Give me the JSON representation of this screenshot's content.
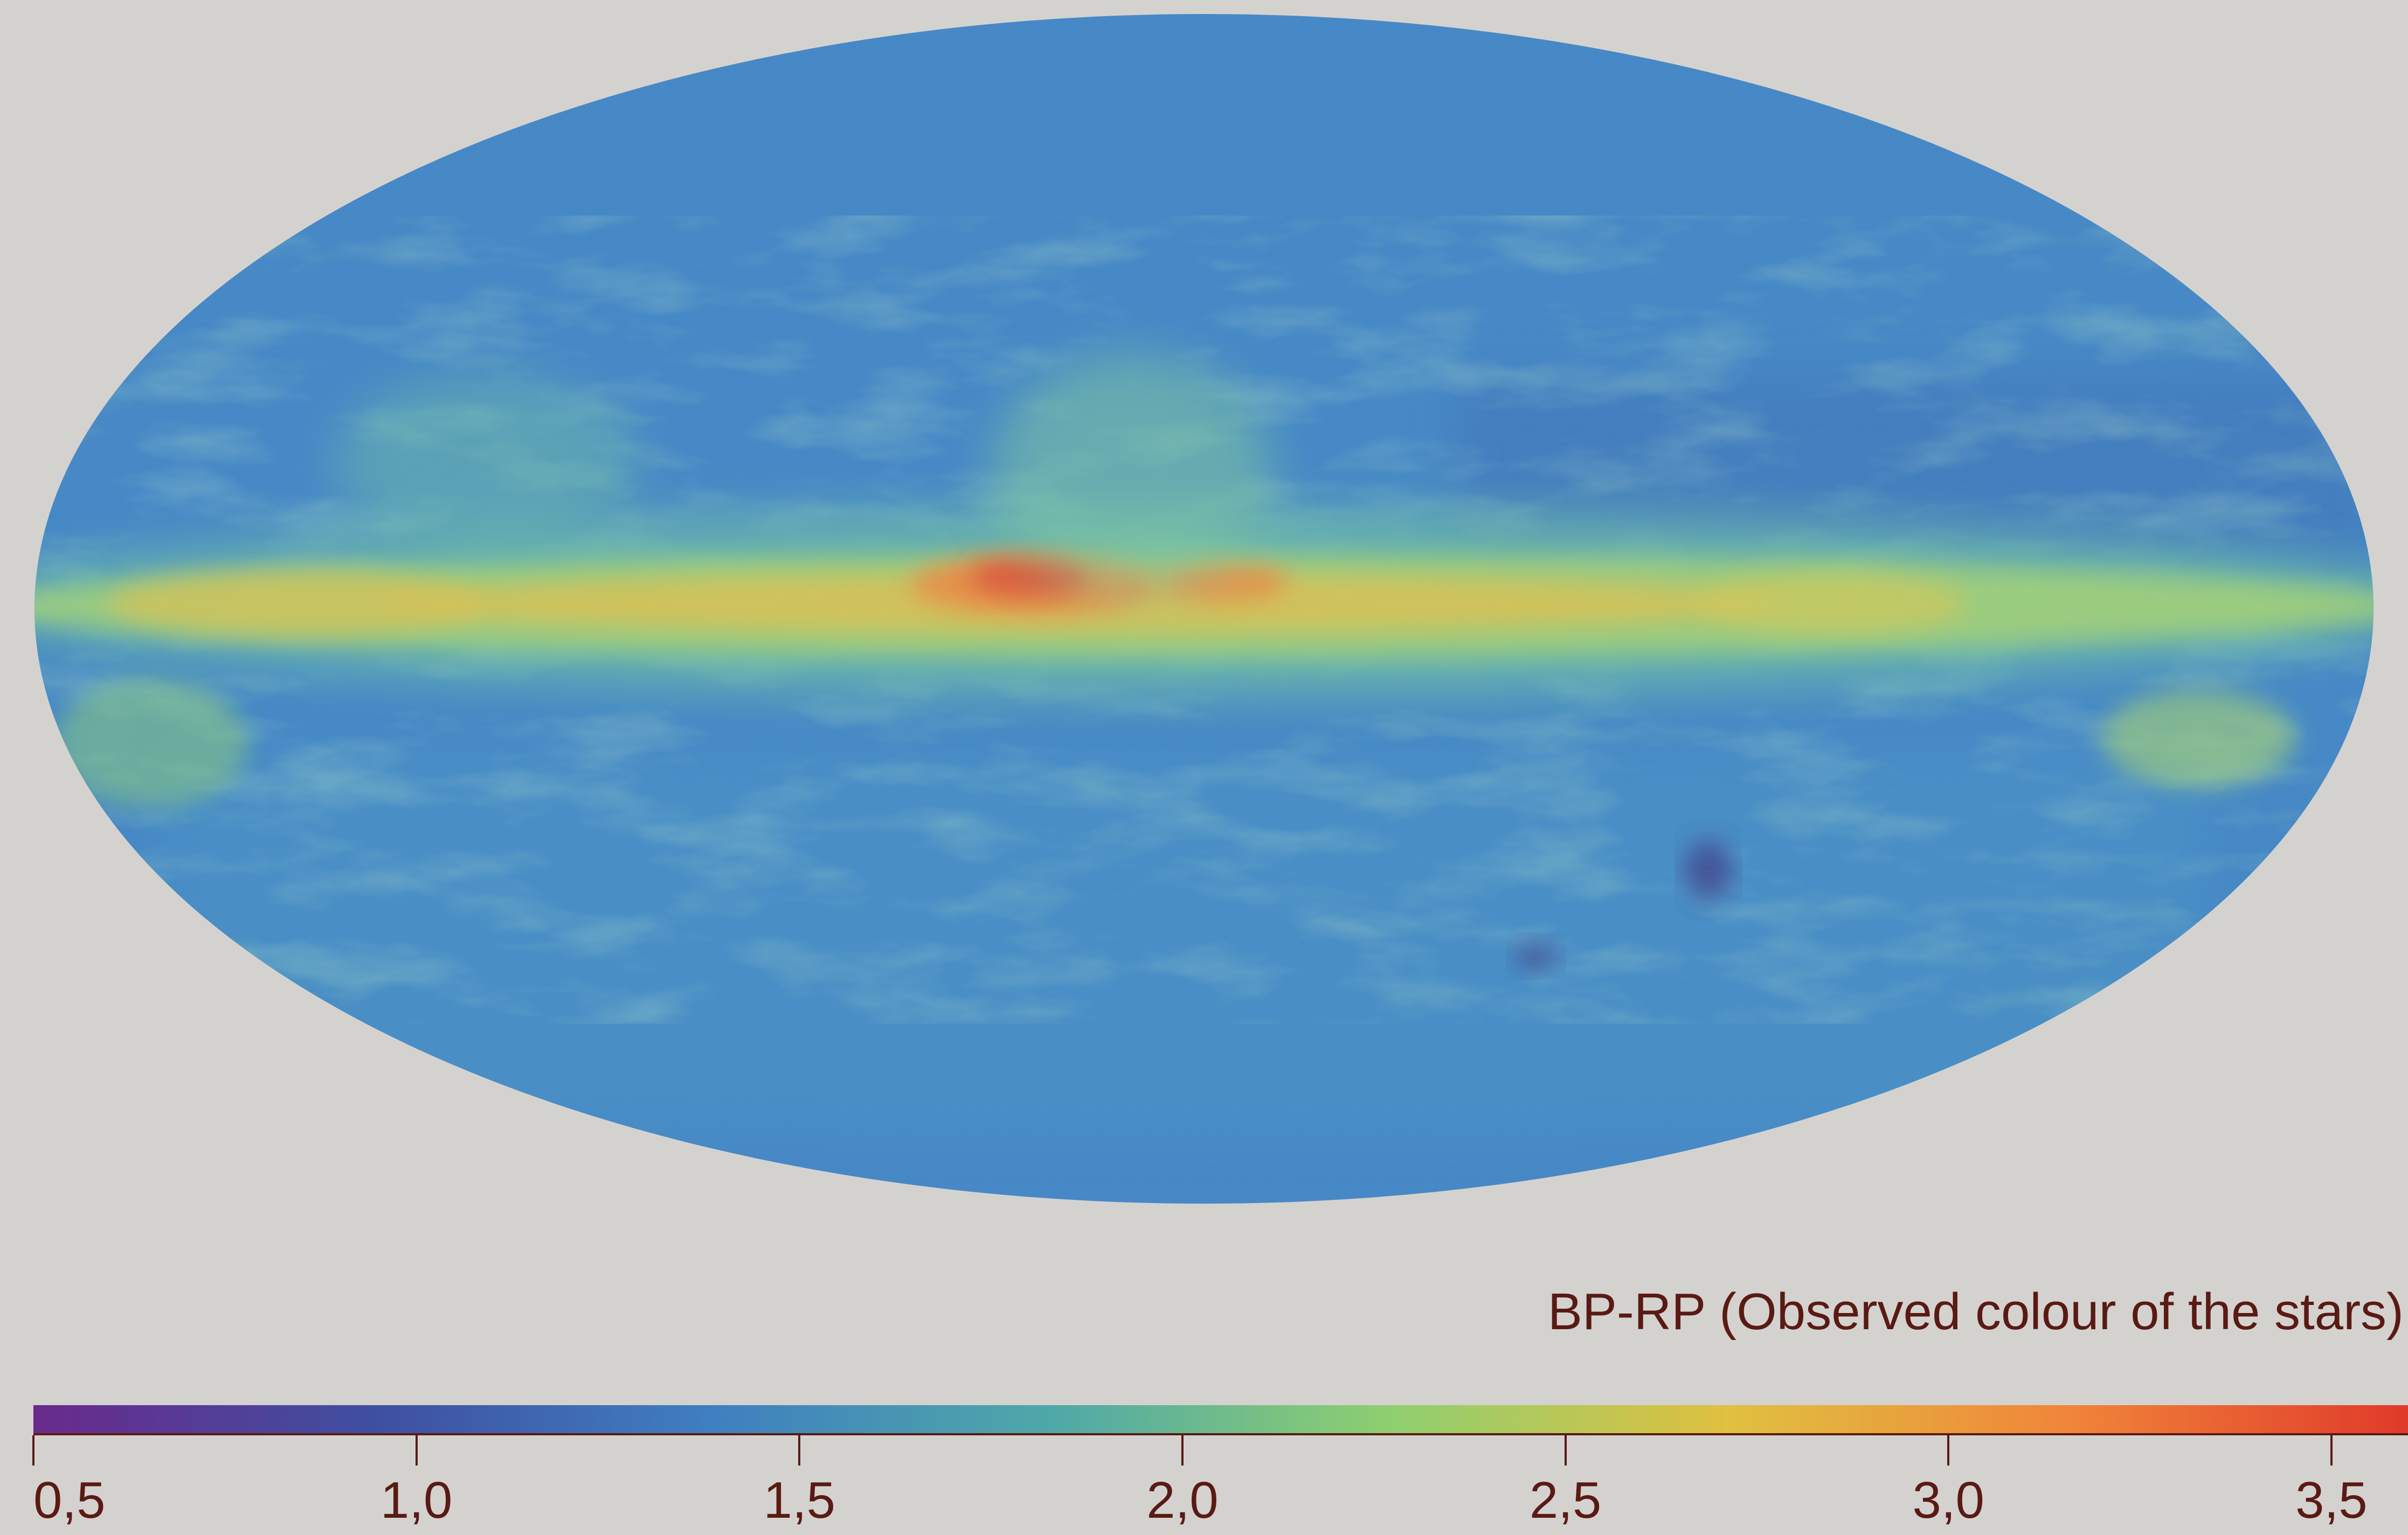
{
  "map": {
    "projection": "Mollweide all-sky",
    "colormap": "spectral (purple-blue-green-yellow-orange-red)",
    "background_color": "#d4d2cf",
    "features": [
      "galactic-plane-band",
      "galactic-centre-reddening",
      "large-magellanic-cloud",
      "small-magellanic-cloud"
    ]
  },
  "legend": {
    "title": "BP-RP (Observed colour of the stars)",
    "range": [
      0.5,
      3.6
    ],
    "ticks": [
      {
        "value": 0.5,
        "label": "0,5"
      },
      {
        "value": 1.0,
        "label": "1,0"
      },
      {
        "value": 1.5,
        "label": "1,5"
      },
      {
        "value": 2.0,
        "label": "2,0"
      },
      {
        "value": 2.5,
        "label": "2,5"
      },
      {
        "value": 3.0,
        "label": "3,0"
      },
      {
        "value": 3.5,
        "label": "3,5"
      }
    ],
    "colors": [
      "#6a2a8c",
      "#3f4fa0",
      "#3f7fc0",
      "#4fa8a8",
      "#8fcf6f",
      "#e0c040",
      "#f0853a",
      "#e03a2a"
    ],
    "text_color": "#5a1a14"
  }
}
